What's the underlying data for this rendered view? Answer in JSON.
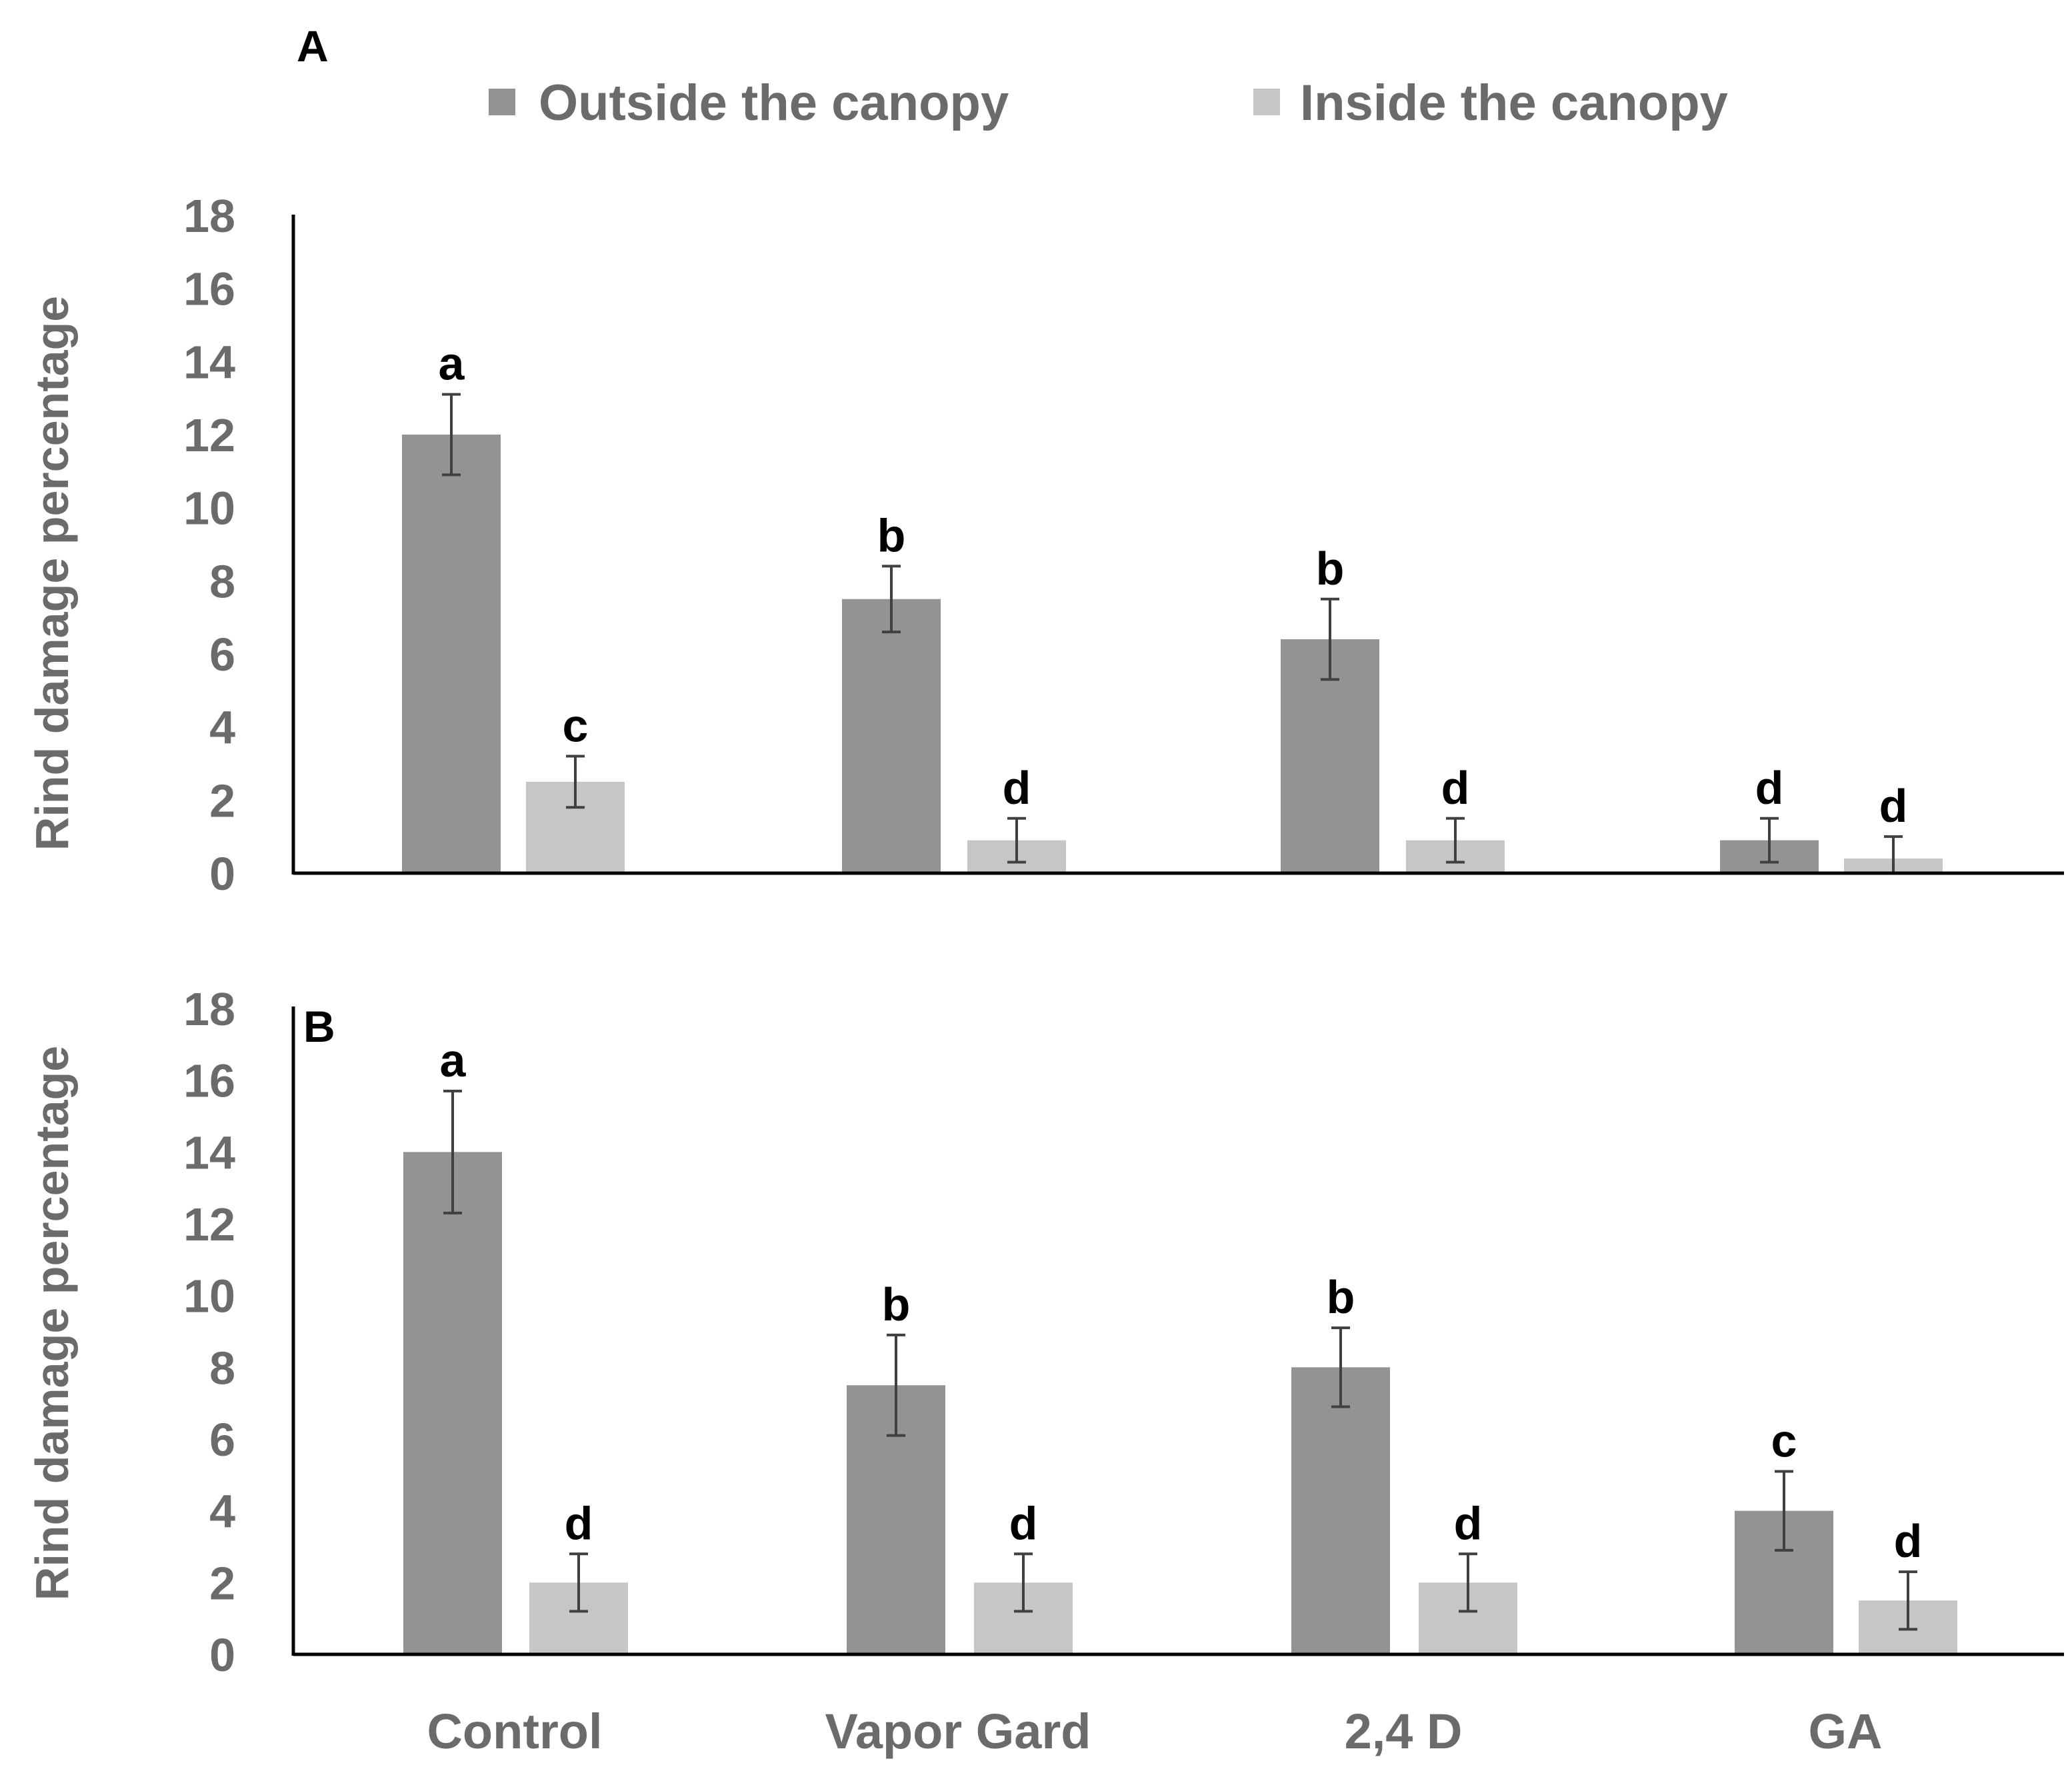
{
  "chart_data": {
    "type": "bar",
    "legend": {
      "placement": "top",
      "entries": [
        {
          "name": "Outside the canopy",
          "color": "#939393"
        },
        {
          "name": "Inside the canopy",
          "color": "#c6c6c6"
        }
      ]
    },
    "categories": [
      "Control",
      "Vapor Gard",
      "2,4 D",
      "GA"
    ],
    "ylabel": "Rind damage percentage",
    "ylim": [
      0,
      18
    ],
    "yticks": [
      0,
      2,
      4,
      6,
      8,
      10,
      12,
      14,
      16,
      18
    ],
    "panels": [
      {
        "label": "A",
        "series": [
          {
            "name": "Outside the canopy",
            "values": [
              12,
              7.5,
              6.4,
              0.9
            ],
            "errors": [
              1.1,
              0.9,
              1.1,
              0.6
            ],
            "letters": [
              "a",
              "b",
              "b",
              "d"
            ]
          },
          {
            "name": "Inside the canopy",
            "values": [
              2.5,
              0.9,
              0.9,
              0.4
            ],
            "errors": [
              0.7,
              0.6,
              0.6,
              0.6
            ],
            "letters": [
              "c",
              "d",
              "d",
              "d"
            ]
          }
        ]
      },
      {
        "label": "B",
        "series": [
          {
            "name": "Outside the canopy",
            "values": [
              14,
              7.5,
              8,
              4
            ],
            "errors": [
              1.7,
              1.4,
              1.1,
              1.1
            ],
            "letters": [
              "a",
              "b",
              "b",
              "c"
            ]
          },
          {
            "name": "Inside the canopy",
            "values": [
              2,
              2,
              2,
              1.5
            ],
            "errors": [
              0.8,
              0.8,
              0.8,
              0.8
            ],
            "letters": [
              "d",
              "d",
              "d",
              "d"
            ]
          }
        ]
      }
    ]
  }
}
